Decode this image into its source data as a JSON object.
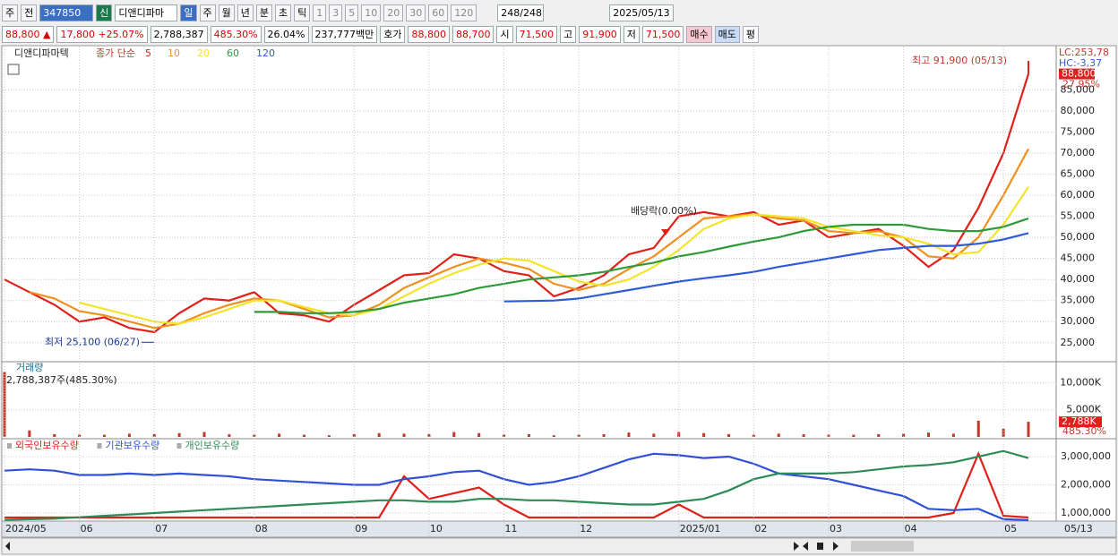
{
  "toolbar": {
    "items": [
      "주",
      "전"
    ],
    "code": "347850",
    "badge": "신",
    "name": "디앤디파마",
    "periods": [
      "일",
      "주",
      "월",
      "년",
      "분",
      "초",
      "틱"
    ],
    "intervals": [
      "1",
      "3",
      "5",
      "10",
      "20",
      "30",
      "60",
      "120"
    ],
    "count": "248/248",
    "date": "2025/05/13"
  },
  "info_bar": {
    "items": [
      "88,800 ▲",
      "17,800 +25.07%",
      "2,788,387",
      "485.30%",
      "26.04%",
      "237,777백만",
      "호가",
      "88,800",
      "88,700",
      "시",
      "71,500",
      "고",
      "91,900",
      "저",
      "71,500"
    ],
    "buttons": [
      "매수",
      "매도",
      "평"
    ]
  },
  "chart_data": [
    {
      "type": "line",
      "title": "디앤디파마텍",
      "subtitle": "종가 단순",
      "series": [
        {
          "name": "5",
          "color": "#e0201b",
          "values": [
            40000,
            37000,
            34000,
            30000,
            31000,
            28500,
            27500,
            32000,
            35500,
            35000,
            37000,
            32000,
            31500,
            30000,
            34000,
            37500,
            41000,
            41500,
            46000,
            45000,
            42000,
            41000,
            36000,
            38000,
            41000,
            46000,
            47500,
            55000,
            56000,
            55000,
            56000,
            53000,
            54000,
            50000,
            51000,
            52000,
            48000,
            43000,
            47000,
            57000,
            70000,
            88800
          ]
        },
        {
          "name": "10",
          "color": "#f0901e",
          "values": [
            null,
            37000,
            35500,
            32500,
            31500,
            30000,
            28500,
            29500,
            32000,
            34000,
            35500,
            35000,
            33000,
            31000,
            31500,
            34000,
            38000,
            40500,
            43000,
            45000,
            44000,
            42500,
            39000,
            37500,
            39000,
            42500,
            45500,
            50000,
            54500,
            55000,
            55500,
            54500,
            54000,
            51500,
            51000,
            51500,
            50000,
            45500,
            45000,
            50000,
            60000,
            71000
          ]
        },
        {
          "name": "20",
          "color": "#f2e52a",
          "values": [
            null,
            null,
            null,
            34500,
            33000,
            31500,
            30000,
            29500,
            31000,
            33000,
            35000,
            35000,
            33500,
            32000,
            31500,
            33000,
            36000,
            39000,
            41500,
            43500,
            45000,
            44500,
            42000,
            39500,
            38500,
            40000,
            43000,
            47000,
            52000,
            54500,
            55500,
            55000,
            54500,
            52500,
            51500,
            50500,
            50000,
            48500,
            46000,
            46500,
            53000,
            62000
          ]
        },
        {
          "name": "60",
          "color": "#2e9a3a",
          "values": [
            null,
            null,
            null,
            null,
            null,
            null,
            null,
            null,
            null,
            null,
            32300,
            32300,
            32000,
            32000,
            32300,
            33000,
            34500,
            35500,
            36500,
            38000,
            39000,
            40000,
            40500,
            41000,
            41800,
            43000,
            44000,
            45500,
            46500,
            47800,
            49000,
            50000,
            51500,
            52500,
            53000,
            53000,
            53000,
            52000,
            51500,
            51500,
            52500,
            54500
          ]
        },
        {
          "name": "120",
          "color": "#2f5bd8",
          "values": [
            null,
            null,
            null,
            null,
            null,
            null,
            null,
            null,
            null,
            null,
            null,
            null,
            null,
            null,
            null,
            null,
            null,
            null,
            null,
            null,
            34800,
            34900,
            35000,
            35500,
            36500,
            37500,
            38500,
            39500,
            40300,
            41000,
            41800,
            43000,
            44000,
            45000,
            46000,
            47000,
            47500,
            48000,
            48000,
            48500,
            49500,
            51000
          ]
        }
      ],
      "ylim": [
        20700,
        95300
      ],
      "yticks": [
        {
          "value": 25000,
          "label": "25,000"
        },
        {
          "value": 30000,
          "label": "30,000"
        },
        {
          "value": 35000,
          "label": "35,000"
        },
        {
          "value": 40000,
          "label": "40,000"
        },
        {
          "value": 45000,
          "label": "45,000"
        },
        {
          "value": 50000,
          "label": "50,000"
        },
        {
          "value": 55000,
          "label": "55,000"
        },
        {
          "value": 60000,
          "label": "60,000"
        },
        {
          "value": 65000,
          "label": "65,000"
        },
        {
          "value": 70000,
          "label": "70,000"
        },
        {
          "value": 75000,
          "label": "75,000"
        },
        {
          "value": 80000,
          "label": "80,000"
        },
        {
          "value": 85000,
          "label": "85,000"
        }
      ],
      "grid": true,
      "annotations": [
        {
          "value": 25100,
          "label": "최저 25,100 (06/27)"
        },
        {
          "value": 91900,
          "label": "최고 91,900 (05/13)"
        },
        {
          "label": "배당락(0.00%)"
        }
      ],
      "last": {
        "value": 88800,
        "label": "88,800"
      },
      "badges": [
        "LC:253,78",
        "HC:-3,37",
        "27.95%"
      ]
    },
    {
      "type": "bar",
      "title": "거래량",
      "subtitle": "2,788,387주(485.30%)",
      "color": "#c0392b",
      "values": [
        12000,
        1200,
        500,
        400,
        400,
        600,
        500,
        700,
        900,
        500,
        400,
        600,
        400,
        300,
        500,
        700,
        600,
        500,
        900,
        700,
        400,
        500,
        300,
        400,
        500,
        800,
        600,
        900,
        700,
        500,
        400,
        600,
        500,
        400,
        400,
        500,
        600,
        800,
        600,
        3000,
        1500,
        2788
      ],
      "ylim": [
        0,
        13700
      ],
      "yticks": [
        {
          "value": 5000,
          "label": "5,000K"
        },
        {
          "value": 10000,
          "label": "10,000K"
        }
      ],
      "grid": true,
      "last": {
        "value": 2788,
        "label": "2,788K"
      },
      "badges": [
        "485.30%"
      ]
    },
    {
      "type": "line",
      "categories": [
        "2024/05",
        null,
        null,
        "06",
        null,
        null,
        "07",
        null,
        null,
        null,
        "08",
        null,
        null,
        null,
        "09",
        null,
        null,
        "10",
        null,
        null,
        "11",
        null,
        null,
        "12",
        null,
        null,
        null,
        "2025/01",
        null,
        null,
        "02",
        null,
        null,
        "03",
        null,
        null,
        "04",
        null,
        null,
        null,
        "05",
        null
      ],
      "series": [
        {
          "name": "외국인보유수량",
          "color": "#e0201b",
          "values": [
            840000,
            840000,
            840000,
            840000,
            840000,
            840000,
            840000,
            840000,
            840000,
            840000,
            840000,
            840000,
            840000,
            840000,
            840000,
            840000,
            2300000,
            1500000,
            1700000,
            1900000,
            1300000,
            840000,
            840000,
            840000,
            840000,
            840000,
            840000,
            1300000,
            840000,
            840000,
            840000,
            840000,
            840000,
            840000,
            840000,
            840000,
            840000,
            840000,
            1000000,
            3100000,
            900000,
            840000
          ]
        },
        {
          "name": "기관보유수량",
          "color": "#3050d8",
          "values": [
            2500000,
            2550000,
            2500000,
            2350000,
            2350000,
            2400000,
            2350000,
            2400000,
            2350000,
            2300000,
            2200000,
            2150000,
            2100000,
            2050000,
            2000000,
            2000000,
            2200000,
            2300000,
            2450000,
            2500000,
            2200000,
            2000000,
            2100000,
            2300000,
            2600000,
            2900000,
            3100000,
            3050000,
            2950000,
            3000000,
            2750000,
            2400000,
            2300000,
            2200000,
            2000000,
            1800000,
            1600000,
            1150000,
            1100000,
            1150000,
            780000,
            750000
          ]
        },
        {
          "name": "개인보유수량",
          "color": "#2e8b57",
          "values": [
            760000,
            780000,
            800000,
            850000,
            900000,
            950000,
            1000000,
            1050000,
            1100000,
            1150000,
            1200000,
            1250000,
            1300000,
            1350000,
            1400000,
            1450000,
            1450000,
            1400000,
            1400000,
            1500000,
            1500000,
            1450000,
            1450000,
            1400000,
            1350000,
            1300000,
            1300000,
            1400000,
            1500000,
            1800000,
            2200000,
            2400000,
            2400000,
            2400000,
            2450000,
            2550000,
            2650000,
            2700000,
            2800000,
            3000000,
            3200000,
            2950000
          ]
        }
      ],
      "ylim": [
        714000,
        3571000
      ],
      "yticks": [
        {
          "value": 1000000,
          "label": "1,000,000"
        },
        {
          "value": 2000000,
          "label": "2,000,000"
        },
        {
          "value": 3000000,
          "label": "3,000,000"
        }
      ],
      "grid": true,
      "end_label": "05/13"
    }
  ]
}
